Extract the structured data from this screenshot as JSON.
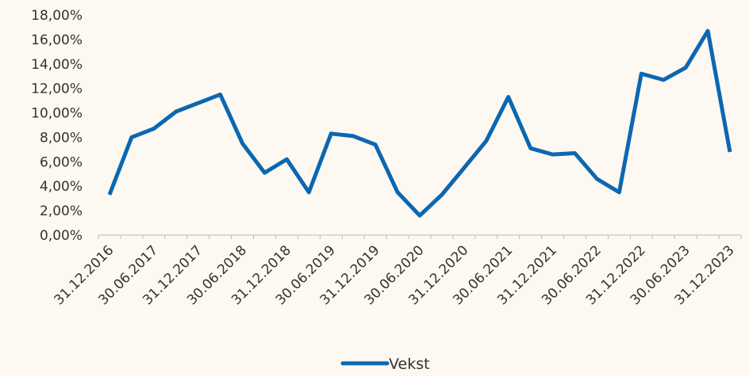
{
  "chart_data": {
    "type": "line",
    "categories": [
      "31.12.2016",
      null,
      "30.06.2017",
      null,
      "31.12.2017",
      null,
      "30.06.2018",
      null,
      "31.12.2018",
      null,
      "30.06.2019",
      null,
      "31.12.2019",
      null,
      "30.06.2020",
      null,
      "31.12.2020",
      null,
      "30.06.2021",
      null,
      "31.12.2021",
      null,
      "30.06.2022",
      null,
      "31.12.2022",
      null,
      "30.06.2023",
      null,
      "31.12.2023"
    ],
    "series": [
      {
        "name": "Vekst",
        "color": "#0b67b2",
        "values": [
          3.3,
          8.0,
          8.7,
          10.1,
          10.8,
          11.5,
          7.5,
          5.1,
          6.2,
          3.5,
          8.3,
          8.1,
          7.4,
          3.5,
          1.6,
          3.3,
          5.5,
          7.7,
          11.3,
          7.1,
          6.6,
          6.7,
          4.6,
          3.5,
          13.2,
          12.7,
          13.7,
          16.7,
          6.8
        ]
      }
    ],
    "ylim": [
      0,
      18
    ],
    "yticks": [
      {
        "value": 0,
        "label": "0,00%"
      },
      {
        "value": 2,
        "label": "2,00%"
      },
      {
        "value": 4,
        "label": "4,00%"
      },
      {
        "value": 6,
        "label": "6,00%"
      },
      {
        "value": 8,
        "label": "8,00%"
      },
      {
        "value": 10,
        "label": "10,00%"
      },
      {
        "value": 12,
        "label": "12,00%"
      },
      {
        "value": 14,
        "label": "14,00%"
      },
      {
        "value": 16,
        "label": "16,00%"
      },
      {
        "value": 18,
        "label": "18,00%"
      }
    ],
    "legend": "bottom"
  }
}
